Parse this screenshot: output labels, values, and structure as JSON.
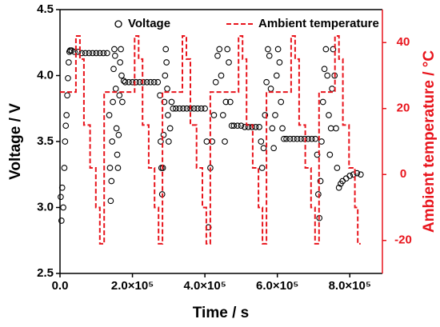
{
  "chart_data": {
    "type": "scatter",
    "xlabel": "Time / s",
    "ylabel": "Voltage / V",
    "y2label": "Ambient temperature / °C",
    "xlim": [
      0,
      890000
    ],
    "xticks": [
      {
        "value": 0,
        "label": "0.0"
      },
      {
        "value": 200000,
        "label": "2.0×10⁵"
      },
      {
        "value": 400000,
        "label": "4.0×10⁵"
      },
      {
        "value": 600000,
        "label": "6.0×10⁵"
      },
      {
        "value": 800000,
        "label": "8.0×10⁵"
      }
    ],
    "ylim": [
      2.5,
      4.5
    ],
    "yticks": [
      2.5,
      {
        "value": 3,
        "label": "3.0"
      },
      3.5,
      {
        "value": 4,
        "label": "4.0"
      },
      4.5
    ],
    "y2lim": [
      -30,
      50
    ],
    "y2ticks": [
      -20,
      0,
      20,
      40
    ],
    "legend": "top",
    "series": [
      {
        "name": "Voltage",
        "type": "scatter",
        "color": "#000000",
        "x": [
          2000,
          4000,
          6000,
          9000,
          12000,
          14000,
          16000,
          18000,
          20000,
          22000,
          24000,
          26000,
          28000,
          32000,
          40000,
          50000,
          60000,
          70000,
          80000,
          90000,
          100000,
          110000,
          120000,
          130000,
          136000,
          138000,
          140000,
          142000,
          144000,
          146000,
          148000,
          150000,
          152000,
          154000,
          156000,
          158000,
          160000,
          162000,
          164000,
          166000,
          168000,
          170000,
          172000,
          176000,
          180000,
          190000,
          200000,
          210000,
          220000,
          230000,
          240000,
          250000,
          260000,
          270000,
          276000,
          278000,
          280000,
          282000,
          284000,
          286000,
          288000,
          290000,
          292000,
          294000,
          296000,
          298000,
          300000,
          304000,
          308000,
          312000,
          320000,
          330000,
          340000,
          350000,
          360000,
          370000,
          380000,
          390000,
          400000,
          405000,
          410000,
          415000,
          420000,
          425000,
          430000,
          435000,
          440000,
          445000,
          450000,
          455000,
          458000,
          462000,
          466000,
          470000,
          474000,
          480000,
          490000,
          500000,
          510000,
          520000,
          530000,
          540000,
          550000,
          555000,
          558000,
          562000,
          566000,
          570000,
          574000,
          578000,
          582000,
          586000,
          590000,
          594000,
          598000,
          602000,
          606000,
          610000,
          614000,
          618000,
          625000,
          635000,
          645000,
          655000,
          665000,
          675000,
          685000,
          695000,
          705000,
          710000,
          713000,
          716000,
          719000,
          722000,
          726000,
          730000,
          734000,
          738000,
          742000,
          745000,
          748000,
          751000,
          754000,
          758000,
          762000,
          765000,
          770000,
          775000,
          780000,
          790000,
          800000,
          810000,
          820000,
          830000
        ],
        "values": [
          3.08,
          2.9,
          3.15,
          3.0,
          3.3,
          3.5,
          3.62,
          3.7,
          3.85,
          3.98,
          4.1,
          4.18,
          4.19,
          4.19,
          4.18,
          4.18,
          4.17,
          4.17,
          4.17,
          4.17,
          4.17,
          4.17,
          4.17,
          4.17,
          3.7,
          3.3,
          3.05,
          3.2,
          3.5,
          3.8,
          4.05,
          4.2,
          4.15,
          3.9,
          3.6,
          3.4,
          3.3,
          3.55,
          3.85,
          4.1,
          4.2,
          4.0,
          3.8,
          3.96,
          3.95,
          3.95,
          3.95,
          3.95,
          3.95,
          3.95,
          3.95,
          3.95,
          3.95,
          3.95,
          3.85,
          3.5,
          3.3,
          3.1,
          3.3,
          3.55,
          3.8,
          4.0,
          4.2,
          4.1,
          3.9,
          3.7,
          3.5,
          3.6,
          3.8,
          3.75,
          3.75,
          3.75,
          3.75,
          3.75,
          3.75,
          3.75,
          3.75,
          3.75,
          3.75,
          3.5,
          2.85,
          3.3,
          3.5,
          3.7,
          3.95,
          4.15,
          4.2,
          4.0,
          3.7,
          3.5,
          3.8,
          4.2,
          4.1,
          3.8,
          3.62,
          3.62,
          3.62,
          3.62,
          3.61,
          3.61,
          3.61,
          3.61,
          3.61,
          3.5,
          3.3,
          3.45,
          3.7,
          3.95,
          4.2,
          4.15,
          3.9,
          3.6,
          3.45,
          3.7,
          4.0,
          4.2,
          4.1,
          3.8,
          3.6,
          3.52,
          3.52,
          3.52,
          3.52,
          3.52,
          3.52,
          3.52,
          3.52,
          3.52,
          3.52,
          3.4,
          3.1,
          2.92,
          3.2,
          3.5,
          3.8,
          4.05,
          4.2,
          4.0,
          3.7,
          3.4,
          3.6,
          3.9,
          4.2,
          4.0,
          3.6,
          3.3,
          3.15,
          3.18,
          3.2,
          3.22,
          3.24,
          3.25,
          3.26,
          3.25
        ]
      },
      {
        "name": "Ambient temperature",
        "type": "line",
        "axis": "y2",
        "color": "#e8141c",
        "dash": "dash",
        "x": [
          0,
          44000,
          44000,
          55000,
          55000,
          66000,
          66000,
          83000,
          83000,
          99000,
          99000,
          110000,
          110000,
          122000,
          122000,
          206000,
          206000,
          217000,
          217000,
          228000,
          228000,
          245000,
          245000,
          261000,
          261000,
          272000,
          272000,
          283000,
          283000,
          338000,
          338000,
          349000,
          349000,
          360000,
          360000,
          377000,
          377000,
          393000,
          393000,
          404000,
          404000,
          415000,
          415000,
          493000,
          493000,
          504000,
          504000,
          515000,
          515000,
          532000,
          532000,
          548000,
          548000,
          559000,
          559000,
          570000,
          570000,
          638000,
          638000,
          649000,
          649000,
          660000,
          660000,
          677000,
          677000,
          693000,
          693000,
          704000,
          704000,
          715000,
          715000,
          759000,
          759000,
          770000,
          770000,
          781000,
          781000,
          798000,
          798000,
          814000,
          814000,
          822000,
          822000,
          830000
        ],
        "values": [
          25,
          25,
          42,
          42,
          35,
          35,
          15,
          15,
          2,
          2,
          -10,
          -10,
          -21,
          -21,
          25,
          25,
          42,
          42,
          35,
          35,
          15,
          15,
          2,
          2,
          -10,
          -10,
          -21,
          -21,
          25,
          25,
          42,
          42,
          35,
          35,
          15,
          15,
          2,
          2,
          -10,
          -10,
          -21,
          -21,
          25,
          25,
          42,
          42,
          35,
          35,
          15,
          15,
          2,
          2,
          -10,
          -10,
          -21,
          -21,
          25,
          25,
          42,
          42,
          35,
          35,
          15,
          15,
          2,
          2,
          -10,
          -10,
          -21,
          -21,
          25,
          25,
          42,
          42,
          35,
          35,
          15,
          15,
          2,
          2,
          -10,
          -10,
          -21,
          -21
        ]
      }
    ]
  }
}
